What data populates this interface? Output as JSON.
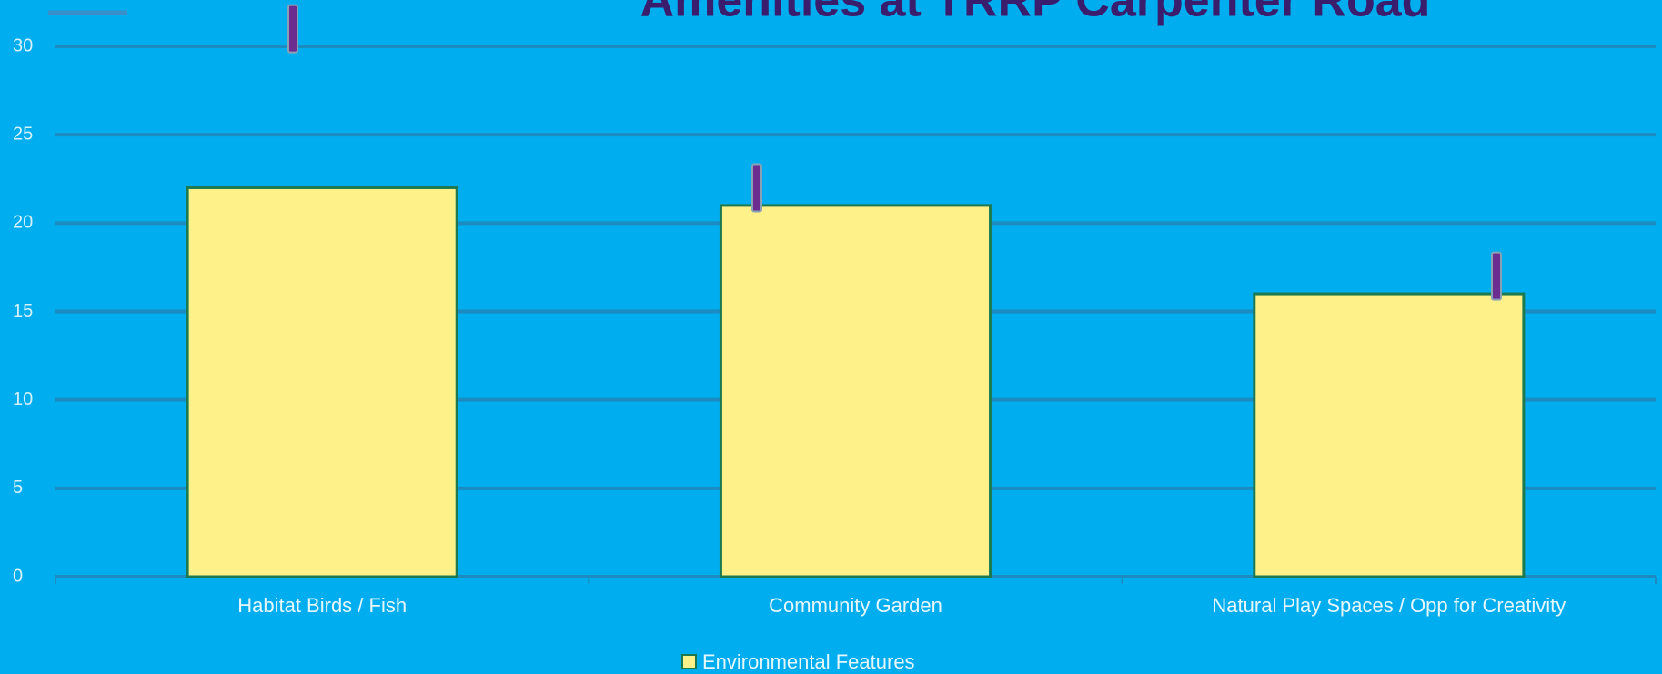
{
  "chart_data": {
    "type": "bar",
    "title": "Amenities at TRRP Carpenter Road",
    "categories": [
      "Habitat Birds / Fish",
      "Community Garden",
      "Natural Play Spaces / Opp for Creativity"
    ],
    "series": [
      {
        "name": "Environmental Features",
        "color": "#fff18a",
        "values": [
          22,
          21,
          16
        ]
      }
    ],
    "markers": {
      "color": "#6b2d8f",
      "values": [
        31,
        22,
        17
      ]
    },
    "ylim": [
      0,
      30
    ],
    "yticks": [
      0,
      5,
      10,
      15,
      20,
      25,
      30
    ],
    "grid": true
  }
}
